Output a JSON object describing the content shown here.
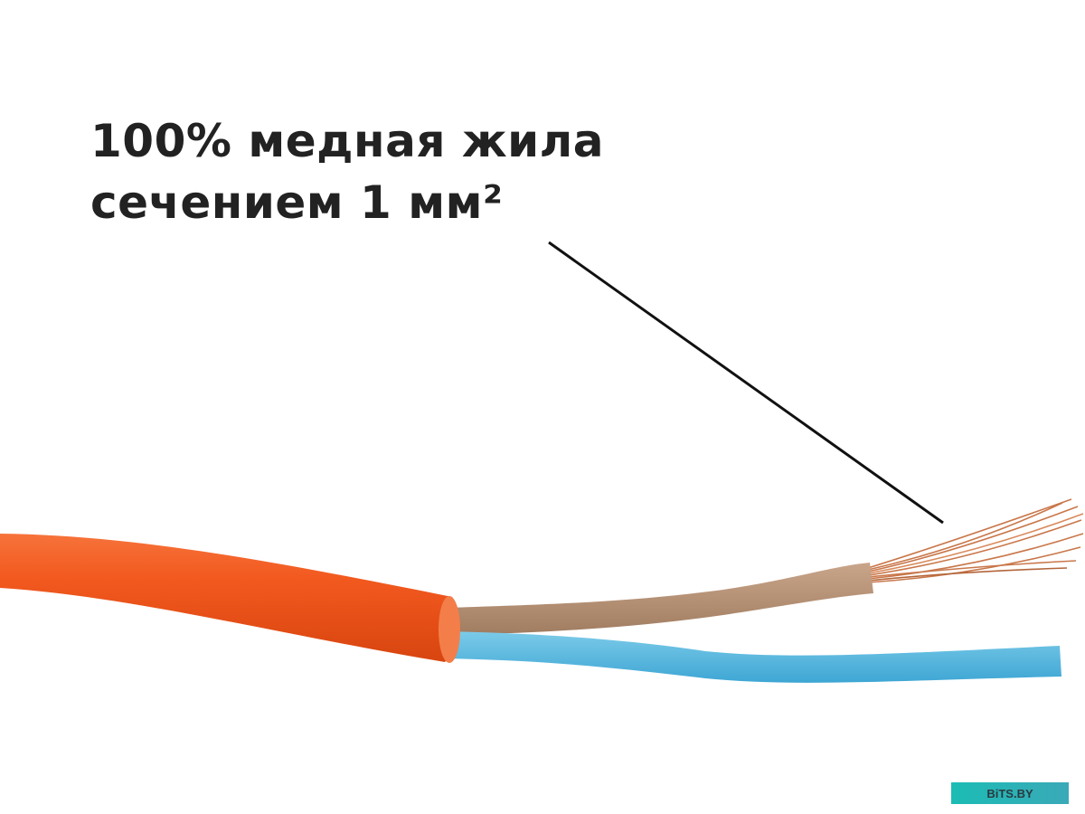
{
  "headline": {
    "line1": "100% медная жила",
    "line2": "сечением 1 мм²"
  },
  "watermark": "BiTS.BY",
  "colors": {
    "jacket": "#f2591f",
    "brown_wire": "#b8957a",
    "blue_wire": "#55b8e0",
    "copper": "#c9774a",
    "text": "#222222",
    "watermark_bg": "#1bbcb4"
  }
}
